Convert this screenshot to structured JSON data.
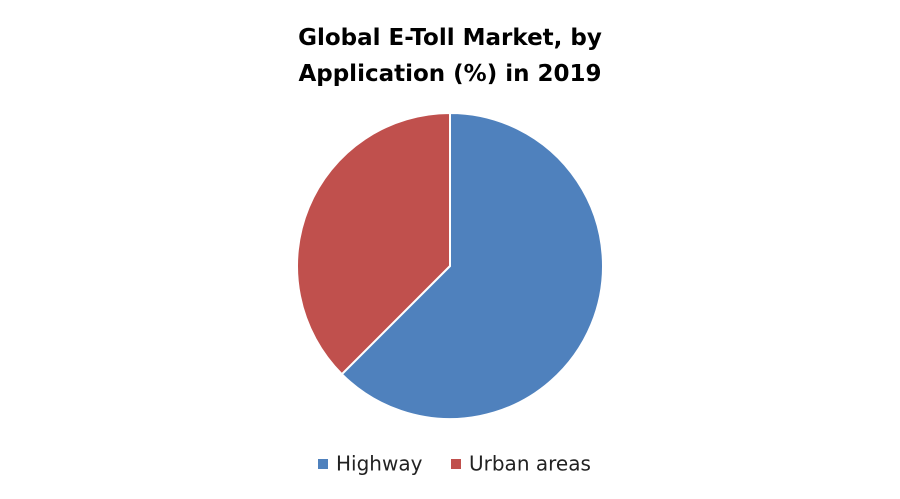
{
  "chart_data": {
    "type": "pie",
    "title": "Global E-Toll Market, by Application (%) in 2019",
    "categories": [
      "Highway",
      "Urban areas"
    ],
    "values": [
      62.5,
      37.5
    ],
    "colors": [
      "#4f81bd",
      "#c0504d"
    ],
    "legend": "bottom"
  }
}
